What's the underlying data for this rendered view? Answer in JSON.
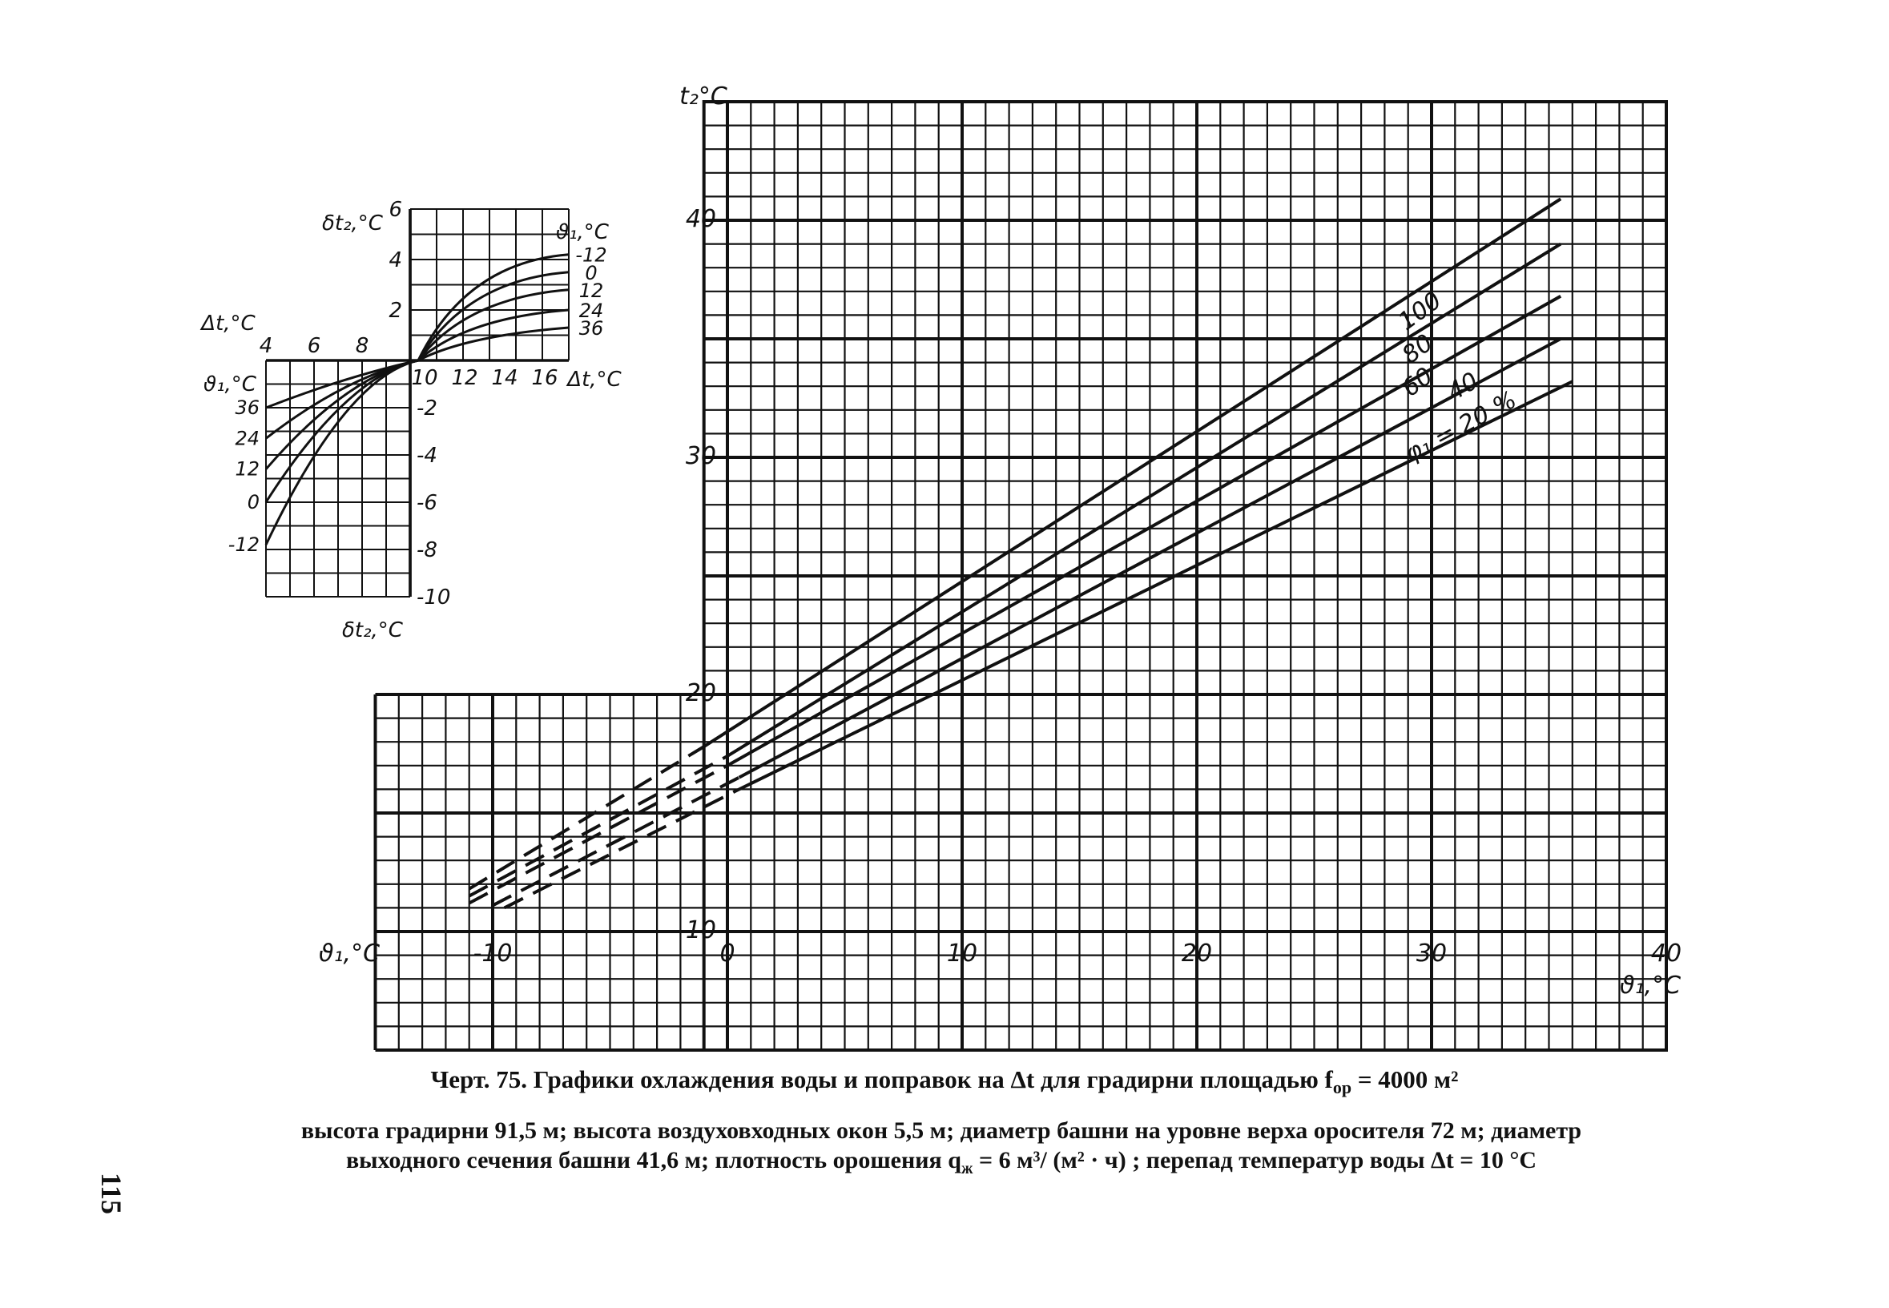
{
  "chart_data": [
    {
      "type": "line",
      "name": "main",
      "xlabel": "ϑ₁,°C",
      "xlabel_left": "ϑ₁,°C",
      "ylabel": "t₂°C",
      "xlim": [
        -15,
        40
      ],
      "ylim": [
        5,
        45
      ],
      "x_ticks": [
        -10,
        0,
        10,
        20,
        30,
        40
      ],
      "y_ticks": [
        10,
        20,
        30,
        40
      ],
      "grid": true,
      "series": [
        {
          "name": "100",
          "label": "100",
          "solid": [
            [
              -1,
              17.8
            ],
            [
              35.5,
              40.9
            ]
          ],
          "dashed": [
            [
              -11,
              11.8
            ],
            [
              -1,
              17.8
            ]
          ]
        },
        {
          "name": "80",
          "label": "80",
          "solid": [
            [
              0,
              17.4
            ],
            [
              35.5,
              39.0
            ]
          ],
          "dashed": [
            [
              -11,
              11.5
            ],
            [
              0,
              17.4
            ]
          ]
        },
        {
          "name": "60",
          "label": "60",
          "solid": [
            [
              0,
              17.0
            ],
            [
              35.5,
              36.8
            ]
          ],
          "dashed": [
            [
              -11,
              11.2
            ],
            [
              0,
              17.0
            ]
          ]
        },
        {
          "name": "40",
          "label": "40",
          "solid": [
            [
              0.5,
              16.5
            ],
            [
              35.5,
              35.0
            ]
          ],
          "dashed": [
            [
              -10,
              11.1
            ],
            [
              0.5,
              16.5
            ]
          ]
        },
        {
          "name": "φ₁ = 20%",
          "label": "φ₁ = 20 %",
          "solid": [
            [
              0.5,
              16.0
            ],
            [
              36,
              33.2
            ]
          ],
          "dashed": [
            [
              -9.5,
              11.0
            ],
            [
              0.5,
              16.0
            ]
          ]
        }
      ]
    },
    {
      "type": "line",
      "name": "correction-nomogram",
      "upper_ylabel": "δt₂,°C",
      "upper_y_ticks": [
        2,
        4,
        6
      ],
      "lower_ylabel": "δt₂,°C",
      "lower_y_ticks": [
        -2,
        -4,
        -6,
        -8,
        -10
      ],
      "left_xlabel": "Δt,°C",
      "left_x_ticks": [
        4,
        6,
        8
      ],
      "right_xlabel": "Δt,°C",
      "right_x_ticks": [
        10,
        12,
        14,
        16
      ],
      "right_series_label": "ϑ₁,°C",
      "left_series_label": "ϑ₁,°C",
      "right_series": [
        {
          "name": "-12",
          "value": 4.2
        },
        {
          "name": "0",
          "value": 3.5
        },
        {
          "name": "12",
          "value": 2.8
        },
        {
          "name": "24",
          "value": 2.0
        },
        {
          "name": "36",
          "value": 1.3
        }
      ],
      "left_series": [
        {
          "name": "36",
          "value": -2.0
        },
        {
          "name": "24",
          "value": -3.3
        },
        {
          "name": "12",
          "value": -4.6
        },
        {
          "name": "0",
          "value": -6.0
        },
        {
          "name": "-12",
          "value": -7.8
        }
      ]
    }
  ],
  "caption": {
    "title": "Черт. 75. Графики охлаждения воды и поправок на Δt для градирни площадью f",
    "title_sub": "ор",
    "title_tail": " = 4000 м²",
    "line1": "высота градирни 91,5 м;  высота воздуховходных окон 5,5 м;  диаметр башни на уровне верха оросителя 72 м;  диаметр",
    "line2": "выходного сечения башни 41,6 м;  плотность орошения q",
    "line2_sub": "ж",
    "line2_tail": " = 6 м³/ (м² · ч) ;  перепад температур воды Δt = 10 °C"
  },
  "page_number": "115"
}
